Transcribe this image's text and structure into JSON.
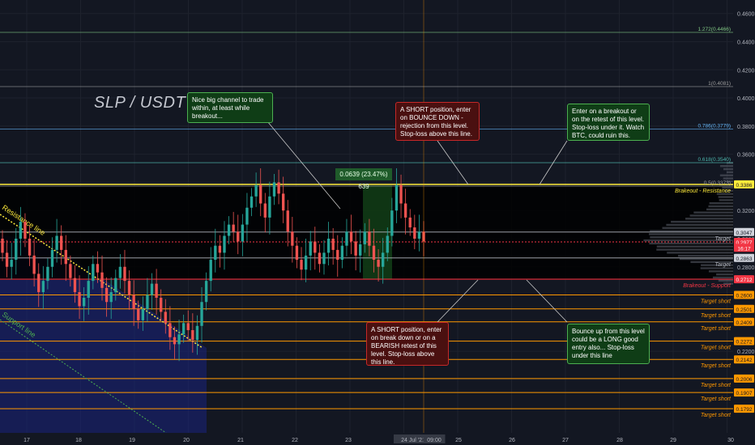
{
  "title": "SLP / USDT",
  "colors": {
    "bg": "#131722",
    "up": "#26a69a",
    "down": "#ef5350",
    "orange": "#ff9800",
    "yellow": "#ffeb3b",
    "red": "#f23645",
    "grid": "#1e222d"
  },
  "notes": {
    "n1": "Nice big channel to trade within, at least while breakout...",
    "n2": "A SHORT position, enter on BOUNCE DOWN - rejection from this level. Stop-loss above this line.",
    "n3": "Enter on a breakout or on the retest of this level. Stop-loss under it. Watch BTC, could ruin this.",
    "n4": "A SHORT position, enter on break down or on a BEARISH retest of this level. Stop-loss above this line.",
    "n5": "Bounce up from this level could be a LONG good entry also... Stop-loss under this line"
  },
  "measure_label": "0.0639 (23.47%) 639",
  "chart_data": {
    "type": "candlestick",
    "symbol": "SLP / USDT",
    "ylim": [
      0.162,
      0.465
    ],
    "y_ticks": [
      "0.4600",
      "0.4400",
      "0.4200",
      "0.4000",
      "0.3800",
      "0.3600",
      "0.3400",
      "0.3200",
      "0.3000",
      "0.2800",
      "0.2200",
      "0.2000"
    ],
    "x_ticks": [
      "17",
      "18",
      "19",
      "20",
      "21",
      "22",
      "23",
      "24 Jul '21",
      "09:00",
      "25",
      "26",
      "27",
      "28",
      "29",
      "30"
    ],
    "price_badges": [
      {
        "value": "0.3386",
        "color": "#ffeb3b"
      },
      {
        "value": "0.3047",
        "color": "#d1d4dc"
      },
      {
        "value": "0.2977",
        "color": "#f23645"
      },
      {
        "value": "16:17",
        "color": "#f23645"
      },
      {
        "value": "0.2863",
        "color": "#d1d4dc"
      },
      {
        "value": "0.2712",
        "color": "#f23645"
      },
      {
        "value": "0.2600",
        "color": "#ff9800"
      },
      {
        "value": "0.2501",
        "color": "#ff9800"
      },
      {
        "value": "0.2409",
        "color": "#ff9800"
      },
      {
        "value": "0.2272",
        "color": "#ff9800"
      },
      {
        "value": "0.2142",
        "color": "#ff9800"
      },
      {
        "value": "0.2006",
        "color": "#ff9800"
      },
      {
        "value": "0.1907",
        "color": "#ff9800"
      },
      {
        "value": "0.1792",
        "color": "#ff9800"
      }
    ],
    "fib_levels": [
      {
        "label": "1.272(0.4466)",
        "value": 0.4466
      },
      {
        "label": "1(0.4081)",
        "value": 0.4081
      },
      {
        "label": "0.786(0.3779)",
        "value": 0.3779
      },
      {
        "label": "0.618(0.3540)",
        "value": 0.354
      },
      {
        "label": "0.5(0.3373)",
        "value": 0.3373
      }
    ],
    "lines": [
      {
        "label": "Brakeout - Resistance",
        "value": 0.3386
      },
      {
        "label": "Target",
        "value": 0.3047
      },
      {
        "label": "Target",
        "value": 0.2863
      },
      {
        "label": "Brakeout - Support",
        "value": 0.2712
      },
      {
        "label": "Target short",
        "value": 0.26
      },
      {
        "label": "Target short",
        "value": 0.2501
      },
      {
        "label": "Target short",
        "value": 0.2409
      },
      {
        "label": "Target short",
        "value": 0.2272
      },
      {
        "label": "Target short",
        "value": 0.2142
      },
      {
        "label": "Target short",
        "value": 0.2006
      },
      {
        "label": "Target short",
        "value": 0.1907
      },
      {
        "label": "Target short",
        "value": 0.1792
      }
    ],
    "trendline_labels": [
      "Resistance line",
      "Support line"
    ],
    "series": [
      {
        "name": "SLP/USDT",
        "points": [
          [
            0.3,
            0.29
          ],
          [
            0.29,
            0.28
          ],
          [
            0.28,
            0.285
          ],
          [
            0.285,
            0.3
          ],
          [
            0.3,
            0.312
          ],
          [
            0.312,
            0.3
          ],
          [
            0.3,
            0.288
          ],
          [
            0.288,
            0.275
          ],
          [
            0.275,
            0.262
          ],
          [
            0.262,
            0.27
          ],
          [
            0.27,
            0.28
          ],
          [
            0.28,
            0.292
          ],
          [
            0.292,
            0.302
          ],
          [
            0.302,
            0.292
          ],
          [
            0.292,
            0.282
          ],
          [
            0.282,
            0.272
          ],
          [
            0.272,
            0.262
          ],
          [
            0.262,
            0.252
          ],
          [
            0.252,
            0.258
          ],
          [
            0.258,
            0.27
          ],
          [
            0.27,
            0.282
          ],
          [
            0.282,
            0.276
          ],
          [
            0.276,
            0.265
          ],
          [
            0.265,
            0.255
          ],
          [
            0.255,
            0.262
          ],
          [
            0.262,
            0.272
          ],
          [
            0.272,
            0.28
          ],
          [
            0.28,
            0.27
          ],
          [
            0.27,
            0.26
          ],
          [
            0.26,
            0.25
          ],
          [
            0.25,
            0.242
          ],
          [
            0.242,
            0.25
          ],
          [
            0.25,
            0.26
          ],
          [
            0.26,
            0.268
          ],
          [
            0.268,
            0.258
          ],
          [
            0.258,
            0.248
          ],
          [
            0.248,
            0.24
          ],
          [
            0.24,
            0.23
          ],
          [
            0.23,
            0.225
          ],
          [
            0.225,
            0.232
          ],
          [
            0.232,
            0.24
          ],
          [
            0.24,
            0.235
          ],
          [
            0.235,
            0.228
          ],
          [
            0.228,
            0.238
          ],
          [
            0.238,
            0.255
          ],
          [
            0.255,
            0.27
          ],
          [
            0.27,
            0.285
          ],
          [
            0.285,
            0.295
          ],
          [
            0.295,
            0.29
          ],
          [
            0.29,
            0.302
          ],
          [
            0.302,
            0.31
          ],
          [
            0.31,
            0.305
          ],
          [
            0.305,
            0.298
          ],
          [
            0.298,
            0.31
          ],
          [
            0.31,
            0.322
          ],
          [
            0.322,
            0.33
          ],
          [
            0.33,
            0.338
          ],
          [
            0.338,
            0.325
          ],
          [
            0.325,
            0.315
          ],
          [
            0.315,
            0.33
          ],
          [
            0.33,
            0.34
          ],
          [
            0.34,
            0.332
          ],
          [
            0.332,
            0.32
          ],
          [
            0.32,
            0.305
          ],
          [
            0.305,
            0.295
          ],
          [
            0.295,
            0.285
          ],
          [
            0.285,
            0.278
          ],
          [
            0.278,
            0.288
          ],
          [
            0.288,
            0.298
          ],
          [
            0.298,
            0.29
          ],
          [
            0.29,
            0.282
          ],
          [
            0.282,
            0.29
          ],
          [
            0.29,
            0.3
          ],
          [
            0.3,
            0.292
          ],
          [
            0.292,
            0.285
          ],
          [
            0.285,
            0.295
          ],
          [
            0.295,
            0.305
          ],
          [
            0.305,
            0.298
          ],
          [
            0.298,
            0.288
          ],
          [
            0.288,
            0.296
          ],
          [
            0.296,
            0.305
          ],
          [
            0.305,
            0.295
          ],
          [
            0.295,
            0.285
          ],
          [
            0.285,
            0.28
          ],
          [
            0.28,
            0.29
          ],
          [
            0.29,
            0.302
          ],
          [
            0.302,
            0.32
          ],
          [
            0.32,
            0.338
          ],
          [
            0.338,
            0.325
          ],
          [
            0.325,
            0.315
          ],
          [
            0.315,
            0.308
          ],
          [
            0.308,
            0.3
          ],
          [
            0.3,
            0.305
          ],
          [
            0.305,
            0.298
          ]
        ]
      }
    ]
  }
}
